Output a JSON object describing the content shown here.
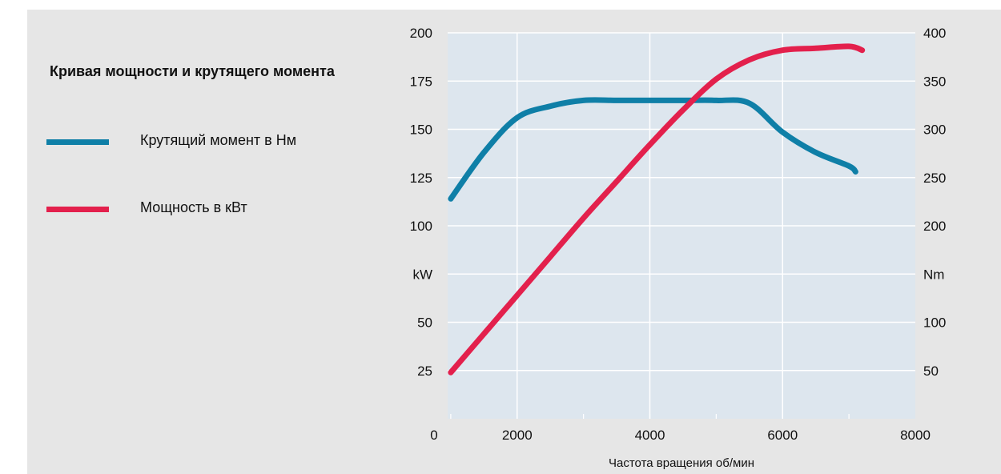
{
  "colors": {
    "background": "#e6e6e6",
    "plot_background": "#dde6ee",
    "gridline": "#ffffff",
    "torque": "#0f7fa7",
    "power": "#e3204c",
    "text": "#111111"
  },
  "chart_data": {
    "type": "line",
    "title": "Кривая мощности и крутящего момента",
    "xlabel": "Частота вращения об/мин",
    "xlim": [
      0,
      8000
    ],
    "x_ticks": [
      {
        "value": 2000,
        "label": "2000"
      },
      {
        "value": 4000,
        "label": "4000"
      },
      {
        "value": 6000,
        "label": "6000"
      },
      {
        "value": 8000,
        "label": "8000"
      }
    ],
    "x_origin_label": "0",
    "y_left": {
      "unit_label": "kW",
      "ylim": [
        0,
        200
      ],
      "ticks": [
        {
          "value": 200,
          "label": "200"
        },
        {
          "value": 175,
          "label": "175"
        },
        {
          "value": 150,
          "label": "150"
        },
        {
          "value": 125,
          "label": "125"
        },
        {
          "value": 100,
          "label": "100"
        },
        {
          "value": 75,
          "label": "kW"
        },
        {
          "value": 50,
          "label": "50"
        },
        {
          "value": 25,
          "label": "25"
        }
      ]
    },
    "y_right": {
      "unit_label": "Nm",
      "ylim": [
        0,
        400
      ],
      "ticks": [
        {
          "value": 400,
          "label": "400"
        },
        {
          "value": 350,
          "label": "350"
        },
        {
          "value": 300,
          "label": "300"
        },
        {
          "value": 250,
          "label": "250"
        },
        {
          "value": 200,
          "label": "200"
        },
        {
          "value": 150,
          "label": "Nm"
        },
        {
          "value": 100,
          "label": "100"
        },
        {
          "value": 50,
          "label": "50"
        }
      ]
    },
    "grid": true,
    "legend_position": "left",
    "series": [
      {
        "name": "Крутящий момент в Нм",
        "axis": "right",
        "color": "#0f7fa7",
        "x": [
          1000,
          1500,
          2000,
          2500,
          3000,
          3500,
          4000,
          4500,
          5000,
          5500,
          6000,
          6500,
          7000,
          7100
        ],
        "y": [
          228,
          276,
          312,
          324,
          330,
          330,
          330,
          330,
          330,
          327,
          297,
          276,
          262,
          256
        ]
      },
      {
        "name": "Мощность в кВт",
        "axis": "left",
        "color": "#e3204c",
        "x": [
          1000,
          1500,
          2000,
          2500,
          3000,
          3500,
          4000,
          4500,
          5000,
          5500,
          6000,
          6500,
          7000,
          7200
        ],
        "y": [
          24,
          44,
          64,
          84,
          104,
          123,
          142,
          160,
          176,
          186,
          191,
          192,
          193,
          191
        ]
      }
    ]
  }
}
